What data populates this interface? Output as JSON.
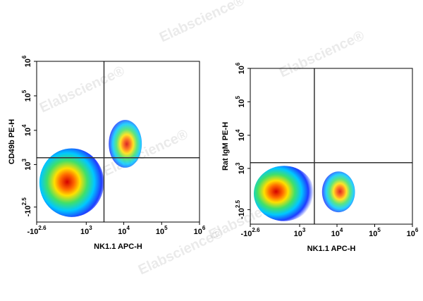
{
  "watermark": "Elabscience®",
  "chart_data": [
    {
      "type": "density",
      "scale": "biexponential",
      "x_label": "NK1.1 APC-H",
      "y_label": "CD49b PE-H",
      "xlim": [
        -398.1,
        1000000
      ],
      "ylim": [
        -1000,
        1000000
      ],
      "xticks": [
        {
          "value": -398.1,
          "label": "-10",
          "exponent": "2.6"
        },
        {
          "value": 1000,
          "label": "10",
          "exponent": "3"
        },
        {
          "value": 10000,
          "label": "10",
          "exponent": "4"
        },
        {
          "value": 100000,
          "label": "10",
          "exponent": "5"
        },
        {
          "value": 1000000,
          "label": "10",
          "exponent": "6"
        }
      ],
      "yticks": [
        {
          "value": -316.2,
          "label": "-10",
          "exponent": "2.5"
        },
        {
          "value": 1000,
          "label": "10",
          "exponent": "3"
        },
        {
          "value": 10000,
          "label": "10",
          "exponent": "4"
        },
        {
          "value": 100000,
          "label": "10",
          "exponent": "5"
        },
        {
          "value": 1000000,
          "label": "10",
          "exponent": "6"
        }
      ],
      "gates": {
        "x": 3000,
        "y": 1600
      },
      "clusters": [
        {
          "x": 250,
          "y": 250,
          "x_range": [
            -320,
            3000
          ],
          "y_range": [
            -700,
            3000
          ]
        },
        {
          "x": 12000,
          "y": 4000,
          "x_range": [
            4000,
            30000
          ],
          "y_range": [
            800,
            20000
          ]
        }
      ]
    },
    {
      "type": "density",
      "scale": "biexponential",
      "x_label": "NK1.1 APC-H",
      "y_label": "Rat IgM PE-H",
      "xlim": [
        -398.1,
        1000000
      ],
      "ylim": [
        -1000,
        1000000
      ],
      "xticks": [
        {
          "value": -398.1,
          "label": "-10",
          "exponent": "2.6"
        },
        {
          "value": 1000,
          "label": "10",
          "exponent": "3"
        },
        {
          "value": 10000,
          "label": "10",
          "exponent": "4"
        },
        {
          "value": 100000,
          "label": "10",
          "exponent": "5"
        },
        {
          "value": 1000000,
          "label": "10",
          "exponent": "6"
        }
      ],
      "yticks": [
        {
          "value": -316.2,
          "label": "-10",
          "exponent": "2.5"
        },
        {
          "value": 1000,
          "label": "10",
          "exponent": "3"
        },
        {
          "value": 10000,
          "label": "10",
          "exponent": "4"
        },
        {
          "value": 100000,
          "label": "10",
          "exponent": "5"
        },
        {
          "value": 1000000,
          "label": "10",
          "exponent": "6"
        }
      ],
      "gates": {
        "x": 2500,
        "y": 1500
      },
      "clusters": [
        {
          "x": 150,
          "y": 100,
          "x_range": [
            -300,
            2500
          ],
          "y_range": [
            -800,
            1200
          ]
        },
        {
          "x": 12000,
          "y": 100,
          "x_range": [
            4000,
            30000
          ],
          "y_range": [
            -400,
            800
          ]
        }
      ]
    }
  ]
}
